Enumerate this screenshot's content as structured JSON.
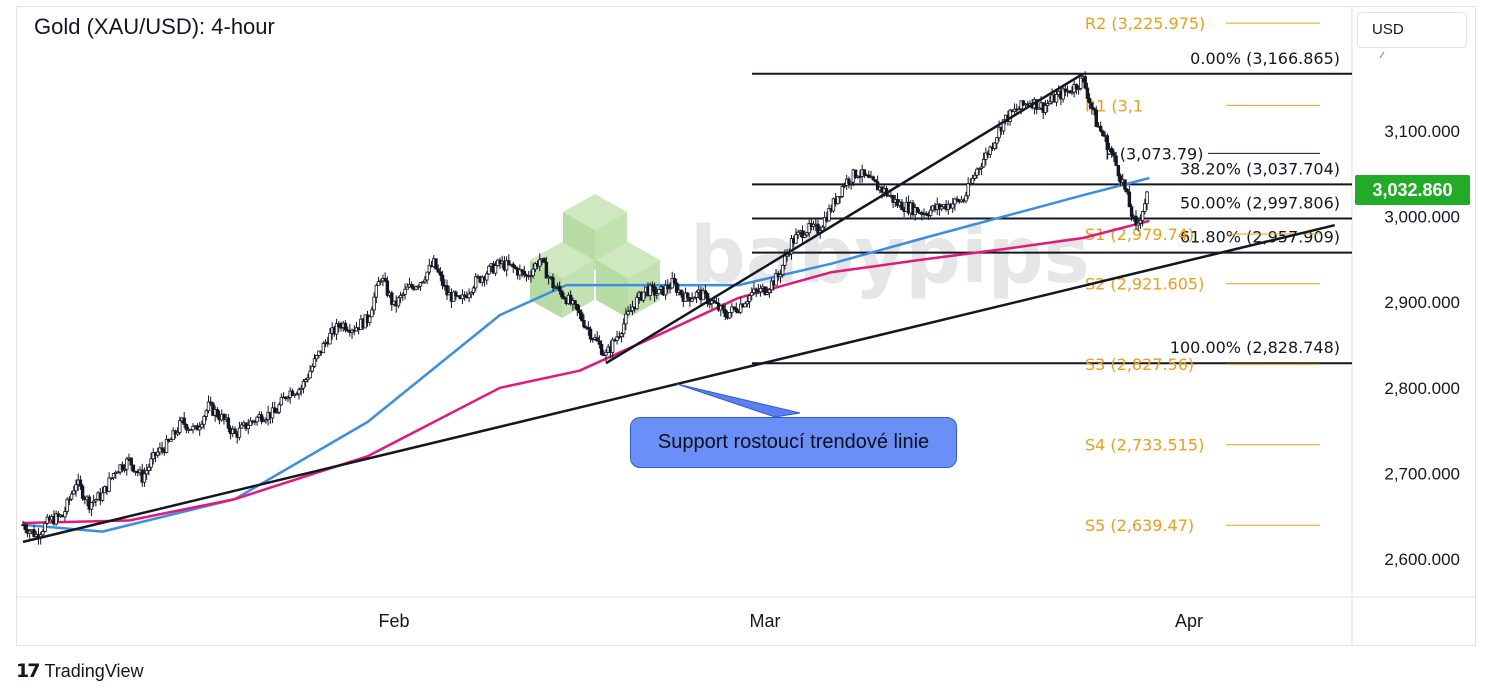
{
  "title": "Gold (XAU/USD): 4-hour",
  "currency": "USD",
  "current_price": "3,032.860",
  "watermark": "babypips",
  "annotation": "Support rostoucí trendové linie",
  "brand": "TradingView",
  "brand_icon": "tradingview-logo-icon",
  "colors": {
    "up_down_candles": "#131722",
    "sma_blue": "#3a8ee6",
    "sma_pink": "#e2187d",
    "pivot": "#f39c12",
    "fib": "#131722",
    "trendline": "#131722",
    "price_tag": "#22ab27",
    "callout": "#6a8ff7"
  },
  "chart_data": {
    "type": "line",
    "title": "Gold (XAU/USD): 4-hour",
    "ylim": [
      2550,
      3240
    ],
    "y_ticks": [
      "2,600.000",
      "2,700.000",
      "2,800.000",
      "2,900.000",
      "3,000.000",
      "3,100.000"
    ],
    "y_tick_values": [
      2600,
      2700,
      2800,
      2900,
      3000,
      3100
    ],
    "x_ticks": [
      "Feb",
      "Mar",
      "Apr"
    ],
    "x_tick_days": [
      32,
      60,
      92
    ],
    "x_range_days": [
      4,
      103
    ],
    "price_path": [
      [
        4,
        2640
      ],
      [
        5,
        2628
      ],
      [
        6,
        2645
      ],
      [
        7,
        2650
      ],
      [
        8,
        2690
      ],
      [
        9,
        2665
      ],
      [
        10,
        2675
      ],
      [
        11,
        2705
      ],
      [
        12,
        2715
      ],
      [
        13,
        2695
      ],
      [
        14,
        2722
      ],
      [
        15,
        2735
      ],
      [
        16,
        2760
      ],
      [
        17,
        2750
      ],
      [
        18,
        2778
      ],
      [
        19,
        2765
      ],
      [
        20,
        2745
      ],
      [
        21,
        2758
      ],
      [
        22,
        2768
      ],
      [
        23,
        2770
      ],
      [
        24,
        2795
      ],
      [
        25,
        2800
      ],
      [
        26,
        2830
      ],
      [
        27,
        2858
      ],
      [
        28,
        2875
      ],
      [
        29,
        2870
      ],
      [
        30,
        2880
      ],
      [
        31,
        2930
      ],
      [
        32,
        2895
      ],
      [
        33,
        2915
      ],
      [
        34,
        2925
      ],
      [
        35,
        2945
      ],
      [
        36,
        2910
      ],
      [
        37,
        2900
      ],
      [
        38,
        2922
      ],
      [
        39,
        2935
      ],
      [
        40,
        2945
      ],
      [
        41,
        2940
      ],
      [
        42,
        2930
      ],
      [
        43,
        2950
      ],
      [
        44,
        2920
      ],
      [
        45,
        2905
      ],
      [
        46,
        2885
      ],
      [
        47,
        2860
      ],
      [
        48,
        2838
      ],
      [
        49,
        2865
      ],
      [
        50,
        2895
      ],
      [
        51,
        2915
      ],
      [
        52,
        2910
      ],
      [
        53,
        2922
      ],
      [
        54,
        2905
      ],
      [
        55,
        2910
      ],
      [
        56,
        2900
      ],
      [
        57,
        2885
      ],
      [
        58,
        2895
      ],
      [
        59,
        2910
      ],
      [
        60,
        2915
      ],
      [
        61,
        2930
      ],
      [
        62,
        2970
      ],
      [
        63,
        2985
      ],
      [
        64,
        2985
      ],
      [
        65,
        3010
      ],
      [
        66,
        3040
      ],
      [
        67,
        3052
      ],
      [
        68,
        3040
      ],
      [
        69,
        3030
      ],
      [
        70,
        3015
      ],
      [
        71,
        3010
      ],
      [
        72,
        3005
      ],
      [
        73,
        3010
      ],
      [
        74,
        3015
      ],
      [
        75,
        3020
      ],
      [
        76,
        3055
      ],
      [
        77,
        3080
      ],
      [
        78,
        3112
      ],
      [
        79,
        3125
      ],
      [
        80,
        3135
      ],
      [
        81,
        3128
      ],
      [
        82,
        3140
      ],
      [
        83,
        3148
      ],
      [
        84,
        3160
      ],
      [
        85,
        3110
      ],
      [
        86,
        3080
      ],
      [
        87,
        3040
      ],
      [
        88,
        2985
      ],
      [
        89,
        3032.86
      ]
    ],
    "series": [
      {
        "name": "",
        "color": "#3a8ee6",
        "points": [
          [
            4,
            2640
          ],
          [
            10,
            2632
          ],
          [
            20,
            2670
          ],
          [
            30,
            2760
          ],
          [
            40,
            2885
          ],
          [
            45,
            2920
          ],
          [
            50,
            2920
          ],
          [
            58,
            2920
          ],
          [
            65,
            2945
          ],
          [
            72,
            2975
          ],
          [
            78,
            3000
          ],
          [
            84,
            3025
          ],
          [
            89,
            3045
          ]
        ]
      },
      {
        "name": "",
        "color": "#e2187d",
        "points": [
          [
            4,
            2642
          ],
          [
            12,
            2645
          ],
          [
            20,
            2670
          ],
          [
            30,
            2720
          ],
          [
            40,
            2800
          ],
          [
            46,
            2820
          ],
          [
            52,
            2862
          ],
          [
            58,
            2905
          ],
          [
            65,
            2935
          ],
          [
            72,
            2950
          ],
          [
            78,
            2962
          ],
          [
            84,
            2975
          ],
          [
            89,
            2995
          ]
        ]
      }
    ],
    "fibonacci": [
      {
        "label": "0.00% (3,166.865)",
        "value": 3166.865
      },
      {
        "label": "38.20% (3,037.704)",
        "value": 3037.704
      },
      {
        "label": "50.00% (2,997.806)",
        "value": 2997.806
      },
      {
        "label": "61.80% (2,957.909)",
        "value": 2957.909
      },
      {
        "label": "100.00% (2,828.748)",
        "value": 2828.748
      }
    ],
    "pivots": [
      {
        "label": "R2 (3,225.975)",
        "value": 3225.975
      },
      {
        "label": "R1 (3,1",
        "value": 3130
      },
      {
        "label": "P (3,073.79)",
        "value": 3073.79
      },
      {
        "label": "S1 (2,979.74)",
        "value": 2979.74
      },
      {
        "label": "S2 (2,921.605)",
        "value": 2921.605
      },
      {
        "label": "S3 (2,827.56)",
        "value": 2827.56
      },
      {
        "label": "S4 (2,733.515)",
        "value": 2733.515
      },
      {
        "label": "S5 (2,639.47)",
        "value": 2639.47
      }
    ],
    "trendlines": [
      {
        "from": [
          4,
          2620
        ],
        "to": [
          103,
          2990
        ]
      },
      {
        "from": [
          48,
          2828.748
        ],
        "to": [
          84,
          3166.865
        ]
      }
    ]
  }
}
